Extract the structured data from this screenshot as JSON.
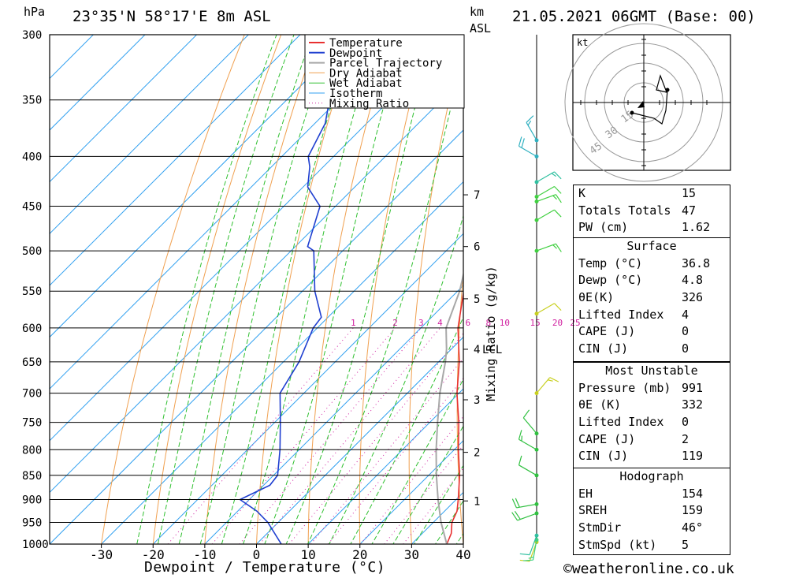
{
  "header": {
    "location": "23°35'N 58°17'E 8m ASL",
    "datetime": "21.05.2021 06GMT (Base: 00)",
    "pressure_unit": "hPa",
    "height_unit_line1": "km",
    "height_unit_line2": "ASL"
  },
  "chart_data": {
    "type": "line",
    "title": "",
    "xlabel": "Dewpoint / Temperature (°C)",
    "ylabel": "hPa",
    "y2label": "Mixing Ratio (g/kg)",
    "xlim": [
      -40,
      40
    ],
    "ylim": [
      1000,
      300
    ],
    "y_scale": "log",
    "x_skew": "45° skew-T",
    "x_ticks": [
      "-30",
      "-20",
      "-10",
      "0",
      "10",
      "20",
      "30",
      "40"
    ],
    "pressure_levels": [
      "300",
      "350",
      "400",
      "450",
      "500",
      "550",
      "600",
      "650",
      "700",
      "750",
      "800",
      "850",
      "900",
      "950",
      "1000"
    ],
    "height_labels": [
      {
        "label": "7",
        "p": 438
      },
      {
        "label": "6",
        "p": 495
      },
      {
        "label": "5",
        "p": 560
      },
      {
        "label": "4",
        "p": 631
      },
      {
        "label": "3",
        "p": 711
      },
      {
        "label": "2",
        "p": 805
      },
      {
        "label": "1",
        "p": 903
      }
    ],
    "lcl_label": "LCL",
    "lcl_pressure": 631,
    "mixing_ratio_labels": [
      "1",
      "2",
      "3",
      "4",
      "6",
      "8",
      "10",
      "15",
      "20",
      "25"
    ],
    "legend": [
      "Temperature",
      "Dewpoint",
      "Parcel Trajectory",
      "Dry Adiabat",
      "Wet Adiabat",
      "Isotherm",
      "Mixing Ratio"
    ],
    "legend_position": "top-right",
    "colors": {
      "temperature": "#e83030",
      "dewpoint": "#1f3fd0",
      "parcel": "#a8a8a8",
      "dry_adiabat": "#f0a050",
      "wet_adiabat": "#30c030",
      "isotherm": "#30a0f0",
      "mixing_ratio": "#d020a0"
    },
    "series": [
      {
        "name": "Temperature",
        "points": [
          [
            1000,
            36.8
          ],
          [
            975,
            35.6
          ],
          [
            950,
            33.6
          ],
          [
            925,
            32.4
          ],
          [
            900,
            30.4
          ],
          [
            850,
            26.0
          ],
          [
            800,
            20.8
          ],
          [
            750,
            15.6
          ],
          [
            700,
            9.6
          ],
          [
            650,
            4.0
          ],
          [
            600,
            -2.8
          ],
          [
            550,
            -8.8
          ],
          [
            500,
            -15.5
          ],
          [
            450,
            -22.7
          ],
          [
            440,
            -22.6
          ],
          [
            430,
            -20.8
          ],
          [
            400,
            -23.8
          ],
          [
            360,
            -29.5
          ]
        ]
      },
      {
        "name": "Dewpoint",
        "points": [
          [
            1000,
            4.8
          ],
          [
            950,
            -2.0
          ],
          [
            925,
            -6.3
          ],
          [
            900,
            -11.8
          ],
          [
            870,
            -8.8
          ],
          [
            850,
            -9.2
          ],
          [
            800,
            -13.7
          ],
          [
            750,
            -18.9
          ],
          [
            700,
            -24.6
          ],
          [
            650,
            -27.0
          ],
          [
            600,
            -30.8
          ],
          [
            585,
            -31.3
          ],
          [
            550,
            -37.6
          ],
          [
            500,
            -45.6
          ],
          [
            495,
            -47.6
          ],
          [
            450,
            -53.0
          ],
          [
            430,
            -59.1
          ],
          [
            410,
            -62.6
          ],
          [
            400,
            -64.9
          ],
          [
            370,
            -68.0
          ],
          [
            300,
            -82.0
          ]
        ]
      },
      {
        "name": "Parcel Trajectory",
        "points": [
          [
            1000,
            36.8
          ],
          [
            950,
            31.5
          ],
          [
            900,
            26.5
          ],
          [
            850,
            21.5
          ],
          [
            800,
            16.5
          ],
          [
            750,
            11.5
          ],
          [
            700,
            6.3
          ],
          [
            650,
            1.3
          ],
          [
            631,
            -0.9
          ],
          [
            600,
            -5.1
          ],
          [
            550,
            -9.6
          ],
          [
            500,
            -15.6
          ],
          [
            450,
            -22.0
          ],
          [
            400,
            -29.5
          ],
          [
            350,
            -38.5
          ],
          [
            300,
            -48.0
          ]
        ]
      }
    ]
  },
  "hodograph": {
    "unit": "kt",
    "ring_labels": [
      "15",
      "30",
      "45"
    ]
  },
  "indices": {
    "rows": [
      {
        "label": "K",
        "value": "15"
      },
      {
        "label": "Totals Totals",
        "value": "47"
      },
      {
        "label": "PW (cm)",
        "value": "1.62"
      }
    ]
  },
  "surface": {
    "heading": "Surface",
    "rows": [
      {
        "label": "Temp (°C)",
        "value": "36.8"
      },
      {
        "label": "Dewp (°C)",
        "value": "4.8"
      },
      {
        "label": "θE(K)",
        "value": "326"
      },
      {
        "label": "Lifted Index",
        "value": "4"
      },
      {
        "label": "CAPE (J)",
        "value": "0"
      },
      {
        "label": "CIN (J)",
        "value": "0"
      }
    ]
  },
  "most_unstable": {
    "heading": "Most Unstable",
    "rows": [
      {
        "label": "Pressure (mb)",
        "value": "991"
      },
      {
        "label": "θE (K)",
        "value": "332"
      },
      {
        "label": "Lifted Index",
        "value": "0"
      },
      {
        "label": "CAPE (J)",
        "value": "2"
      },
      {
        "label": "CIN (J)",
        "value": "119"
      }
    ]
  },
  "hodograph_table": {
    "heading": "Hodograph",
    "rows": [
      {
        "label": "EH",
        "value": "154"
      },
      {
        "label": "SREH",
        "value": "159"
      },
      {
        "label": "StmDir",
        "value": "46°"
      },
      {
        "label": "StmSpd (kt)",
        "value": "5"
      }
    ]
  },
  "wind_profile": {
    "barbs": [
      {
        "p": 995,
        "dir": 200,
        "spd": 10,
        "color": "#c8d020"
      },
      {
        "p": 990,
        "dir": 190,
        "spd": 15,
        "color": "#40d080"
      },
      {
        "p": 980,
        "dir": 200,
        "spd": 10,
        "color": "#30c0a0"
      },
      {
        "p": 930,
        "dir": 250,
        "spd": 20,
        "color": "#30c040"
      },
      {
        "p": 910,
        "dir": 260,
        "spd": 20,
        "color": "#30c040"
      },
      {
        "p": 850,
        "dir": 300,
        "spd": 10,
        "color": "#30c040"
      },
      {
        "p": 800,
        "dir": 300,
        "spd": 15,
        "color": "#30c040"
      },
      {
        "p": 770,
        "dir": 320,
        "spd": 10,
        "color": "#30c040"
      },
      {
        "p": 700,
        "dir": 40,
        "spd": 15,
        "color": "#c8d020"
      },
      {
        "p": 580,
        "dir": 60,
        "spd": 10,
        "color": "#c8d020"
      },
      {
        "p": 500,
        "dir": 70,
        "spd": 15,
        "color": "#40d040"
      },
      {
        "p": 465,
        "dir": 60,
        "spd": 10,
        "color": "#40d040"
      },
      {
        "p": 445,
        "dir": 70,
        "spd": 15,
        "color": "#40d040"
      },
      {
        "p": 440,
        "dir": 60,
        "spd": 10,
        "color": "#40d040"
      },
      {
        "p": 425,
        "dir": 60,
        "spd": 15,
        "color": "#30c0a0"
      },
      {
        "p": 400,
        "dir": 300,
        "spd": 20,
        "color": "#30b0c0"
      },
      {
        "p": 385,
        "dir": 330,
        "spd": 15,
        "color": "#30b0c0"
      }
    ]
  },
  "footer": {
    "copyright": "©weatheronline.co.uk"
  }
}
